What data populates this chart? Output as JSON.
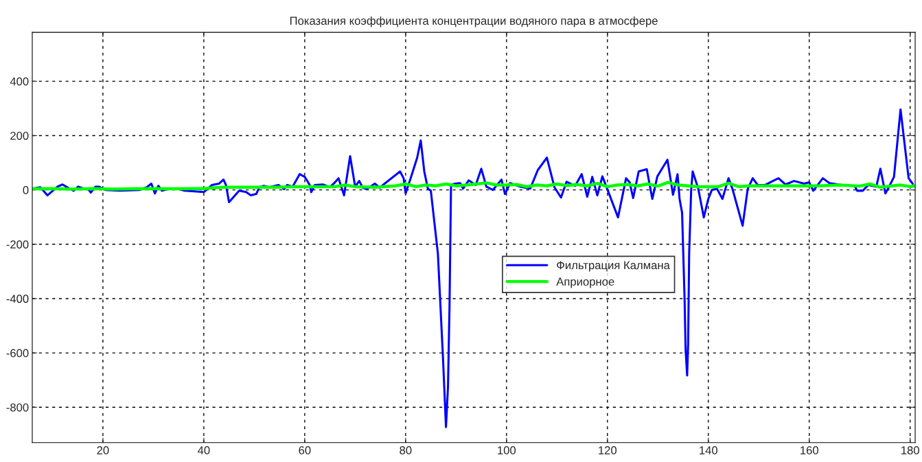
{
  "chart_data": {
    "type": "line",
    "title": "Показания коэффициента концентрации водяного пара в атмосфере",
    "xlim": [
      6,
      181
    ],
    "ylim": [
      -930,
      580
    ],
    "xticks": [
      20,
      40,
      60,
      80,
      100,
      120,
      140,
      160,
      180
    ],
    "yticks": [
      -800,
      -600,
      -400,
      -200,
      0,
      200,
      400
    ],
    "grid": true,
    "legend": "center",
    "line_style": "solid",
    "marker": "none",
    "series": [
      {
        "name": "Фильтрация Калмана",
        "color": "#0000ff",
        "x": [
          6,
          7.6,
          9,
          11,
          12,
          13.1,
          14.2,
          15.1,
          16.5,
          17.1,
          17.6,
          18.5,
          19.2,
          20.5,
          23.3,
          27.3,
          28.7,
          29.6,
          30.3,
          31,
          31.7,
          32.8,
          35.1,
          36.2,
          40,
          41.6,
          43,
          43.9,
          44.4,
          45,
          45.1,
          46.9,
          47,
          48.4,
          49.3,
          50.4,
          51,
          51.9,
          53,
          54.8,
          55.9,
          56.5,
          57.6,
          59,
          60,
          61,
          61.3,
          62,
          63.6,
          65,
          66,
          66.7,
          67.8,
          69,
          70,
          70.8,
          71.5,
          72.3,
          73.9,
          74.9,
          75.5,
          78.9,
          79.6,
          80,
          81,
          82.3,
          83,
          83.7,
          84.4,
          85,
          86.4,
          87.4,
          88,
          88.4,
          88.7,
          88.9,
          89,
          89.8,
          90.8,
          91.4,
          92.5,
          93.9,
          95,
          96,
          97.3,
          99,
          99.7,
          100.7,
          102.7,
          104.7,
          106.2,
          108,
          109.5,
          110.8,
          111.9,
          113.6,
          114.9,
          116,
          117,
          118,
          119,
          120.1,
          122.1,
          123.7,
          124.4,
          125.1,
          126.2,
          127.8,
          128.9,
          129.9,
          131.9,
          133,
          133.9,
          134.3,
          134.8,
          135.3,
          135.5,
          135.8,
          136,
          136.2,
          136.6,
          136.9,
          138,
          139.1,
          140,
          140.7,
          141.7,
          142.8,
          144,
          144.8,
          146.8,
          147.8,
          148.8,
          149.8,
          151.2,
          153.9,
          155.3,
          157,
          159,
          160,
          160.8,
          162.7,
          164,
          166.5,
          169,
          169.5,
          170.6,
          171.7,
          173.3,
          174.1,
          175.1,
          176,
          176.8,
          178.1,
          178.7,
          179.2,
          179.7,
          180.5
        ],
        "values": [
          5,
          10,
          -20,
          12,
          20,
          8,
          -3,
          12,
          3,
          3,
          -10,
          12,
          12,
          0,
          -3,
          0,
          10,
          23,
          -13,
          15,
          -3,
          3,
          3,
          -3,
          -8,
          18,
          23,
          38,
          18,
          -45,
          null,
          null,
          -3,
          -8,
          -20,
          -15,
          10,
          15,
          10,
          18,
          3,
          18,
          12,
          58,
          48,
          18,
          -8,
          18,
          20,
          10,
          28,
          43,
          -20,
          124,
          12,
          33,
          8,
          3,
          23,
          8,
          18,
          68,
          43,
          -13,
          43,
          119,
          182,
          68,
          5,
          -3,
          -235,
          -615,
          -873,
          -724,
          -430,
          -134,
          18,
          23,
          25,
          5,
          35,
          18,
          78,
          12,
          0,
          38,
          -15,
          25,
          12,
          5,
          73,
          119,
          10,
          -28,
          30,
          15,
          58,
          -25,
          48,
          -20,
          50,
          -3,
          -101,
          43,
          28,
          -30,
          68,
          76,
          -33,
          50,
          111,
          -18,
          58,
          -33,
          -84,
          -405,
          -590,
          -683,
          -565,
          -235,
          0,
          68,
          5,
          -101,
          -33,
          0,
          5,
          -33,
          43,
          3,
          -132,
          3,
          43,
          18,
          18,
          43,
          20,
          33,
          23,
          28,
          -3,
          43,
          25,
          18,
          15,
          -3,
          -3,
          18,
          12,
          78,
          -13,
          18,
          48,
          296,
          null,
          null,
          43,
          23
        ]
      },
      {
        "name": "Априорное",
        "color": "#00ff00",
        "x": [
          6,
          10,
          14,
          18,
          22,
          26,
          30,
          34,
          38,
          40,
          42,
          44,
          46,
          48,
          50,
          54,
          58,
          62,
          66,
          68,
          70,
          74,
          78,
          80,
          82,
          84,
          86,
          88,
          90,
          92,
          94,
          96,
          98,
          100,
          102,
          104,
          106,
          108,
          110,
          112,
          114,
          116,
          118,
          120,
          122,
          124,
          126,
          128,
          130,
          132,
          134,
          136,
          138,
          140,
          142,
          144,
          146,
          148,
          150,
          154,
          158,
          162,
          166,
          170,
          172,
          174,
          176,
          178,
          180,
          181
        ],
        "values": [
          4,
          5,
          3,
          5,
          3,
          4,
          5,
          4,
          5,
          5,
          8,
          10,
          10,
          10,
          10,
          10,
          12,
          12,
          12,
          18,
          12,
          10,
          15,
          22,
          12,
          18,
          15,
          22,
          15,
          18,
          22,
          26,
          18,
          18,
          20,
          12,
          18,
          15,
          22,
          16,
          20,
          15,
          24,
          12,
          18,
          20,
          15,
          22,
          14,
          28,
          18,
          15,
          12,
          12,
          12,
          25,
          12,
          15,
          15,
          15,
          15,
          15,
          18,
          14,
          22,
          10,
          14,
          18,
          12,
          15
        ]
      }
    ]
  }
}
